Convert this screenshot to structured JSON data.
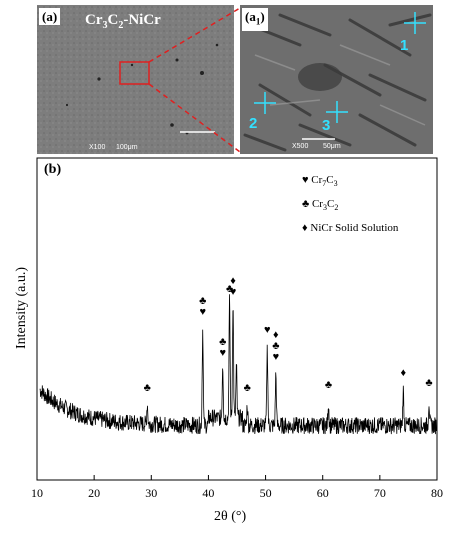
{
  "panel_a": {
    "label": "(a)",
    "title_main": "Cr",
    "title_sub1": "3",
    "title_mid": "C",
    "title_sub2": "2",
    "title_tail": "-NiCr",
    "magnification": "X100",
    "scale_bar": "100μm"
  },
  "panel_a1": {
    "label_main": "(a",
    "label_sub": "1",
    "label_tail": ")",
    "magnification": "X500",
    "scale_bar": "50μm",
    "points": [
      "1",
      "2",
      "3"
    ]
  },
  "panel_b": {
    "label": "(b)",
    "legend": [
      {
        "symbol": "♥",
        "name_main": "Cr",
        "sub1": "7",
        "mid": "C",
        "sub2": "3"
      },
      {
        "symbol": "♣",
        "name_main": "Cr",
        "sub1": "3",
        "mid": "C",
        "sub2": "2"
      },
      {
        "symbol": "♦",
        "name_main": "NiCr Solid Solution",
        "sub1": "",
        "mid": "",
        "sub2": ""
      }
    ],
    "peak_symbols": {
      "heart": "♥",
      "club": "♣",
      "diamond": "♦"
    }
  },
  "chart_data": {
    "type": "line",
    "xlabel": "2θ (°)",
    "ylabel": "Intensity (a.u.)",
    "xlim": [
      10,
      80
    ],
    "ylim": [
      0,
      100
    ],
    "xticks": [
      "10",
      "20",
      "30",
      "40",
      "50",
      "60",
      "70",
      "80"
    ],
    "peaks": [
      {
        "x": 29.3,
        "y": 14,
        "marks": [
          "club"
        ]
      },
      {
        "x": 39.0,
        "y": 66,
        "marks": [
          "club",
          "heart"
        ]
      },
      {
        "x": 42.5,
        "y": 38,
        "marks": [
          "club",
          "heart"
        ]
      },
      {
        "x": 43.7,
        "y": 82,
        "marks": [
          "club"
        ]
      },
      {
        "x": 44.3,
        "y": 80,
        "marks": [
          "diamond",
          "heart"
        ]
      },
      {
        "x": 44.9,
        "y": 35,
        "marks": []
      },
      {
        "x": 46.8,
        "y": 14,
        "marks": [
          "club"
        ]
      },
      {
        "x": 50.3,
        "y": 54,
        "marks": [
          "heart"
        ]
      },
      {
        "x": 51.8,
        "y": 35,
        "marks": [
          "diamond",
          "club",
          "heart"
        ]
      },
      {
        "x": 61.0,
        "y": 16,
        "marks": [
          "club"
        ]
      },
      {
        "x": 74.1,
        "y": 24,
        "marks": [
          "diamond"
        ]
      },
      {
        "x": 78.6,
        "y": 17,
        "marks": [
          "club"
        ]
      }
    ]
  }
}
